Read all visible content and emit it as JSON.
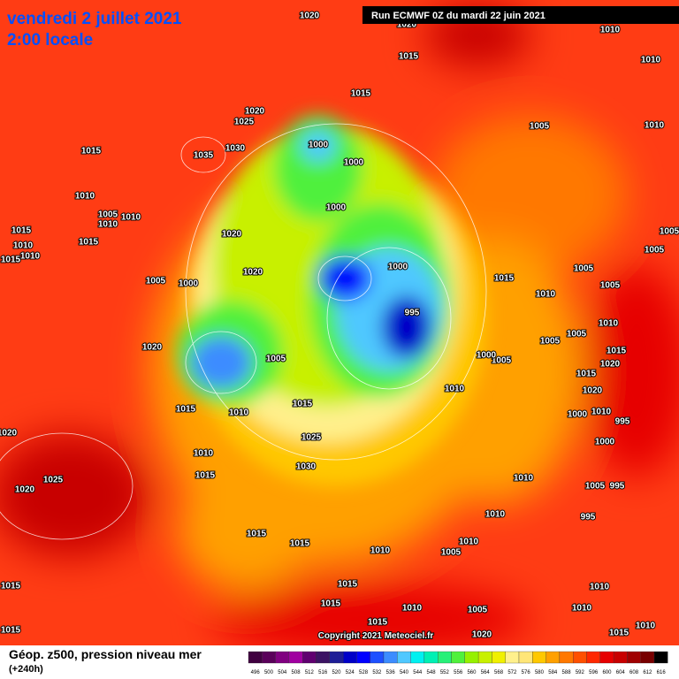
{
  "header": {
    "date": "vendredi 2 juillet 2021",
    "time": "2:00 locale",
    "run": "Run ECMWF 0Z du mardi 22 juin 2021"
  },
  "footer": {
    "title": "Géop. z500, pression niveau mer",
    "lead": "(+240h)",
    "copyright": "Copyright 2021 Meteociel.fr"
  },
  "isobar_labels": [
    1020,
    1020,
    1015,
    1010,
    1010,
    1015,
    1020,
    1025,
    1000,
    1035,
    1030,
    1000,
    1015,
    1005,
    1010,
    1000,
    1010,
    1005,
    1010,
    1010,
    1015,
    1020,
    1005,
    1010,
    1015,
    1015,
    1010,
    1005,
    1020,
    1000,
    1015,
    1005,
    1005,
    1005,
    1000,
    1010,
    995,
    1010,
    1005,
    1005,
    1020,
    1015,
    1005,
    1005,
    1000,
    1020,
    1010,
    1015,
    1020,
    1015,
    1015,
    1010,
    1000,
    1010,
    995,
    1000,
    1025,
    1020,
    1010,
    1030,
    1015,
    1025,
    1020,
    1010,
    1005,
    995,
    1010,
    995,
    1015,
    1015,
    1010,
    1010,
    1005,
    1015,
    1015,
    1010,
    1015,
    1010,
    1005,
    1010,
    1015,
    1015,
    1010,
    1015,
    1020
  ],
  "scale": {
    "values": [
      496,
      500,
      504,
      508,
      512,
      516,
      520,
      524,
      528,
      532,
      536,
      540,
      544,
      548,
      552,
      556,
      560,
      564,
      568,
      572,
      576,
      580,
      584,
      588,
      592,
      596,
      600,
      604,
      608,
      612,
      616
    ],
    "colors": [
      "#400040",
      "#5a005a",
      "#800080",
      "#a000a0",
      "#600070",
      "#3c1464",
      "#1e1e96",
      "#0000c8",
      "#0000ff",
      "#1e50ff",
      "#3c8cff",
      "#50c8ff",
      "#00f0f0",
      "#00f0b4",
      "#28f078",
      "#50f03c",
      "#96f000",
      "#c8f000",
      "#f0f000",
      "#fff08c",
      "#ffe678",
      "#ffc800",
      "#ffa000",
      "#ff7800",
      "#ff5000",
      "#ff2800",
      "#e60000",
      "#c80000",
      "#a00000",
      "#780000",
      "#000000"
    ]
  }
}
